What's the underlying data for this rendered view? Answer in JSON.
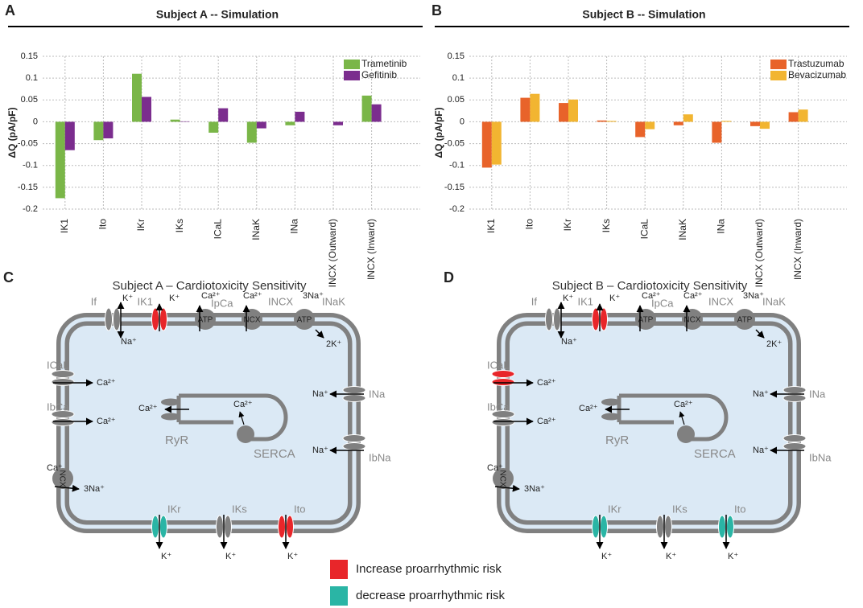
{
  "chart_data": [
    {
      "type": "bar",
      "panel": "A",
      "title": "Subject A -- Simulation",
      "y_label": "ΔQ (pA/pF)",
      "categories": [
        "IK1",
        "Ito",
        "IKr",
        "IKs",
        "ICaL",
        "INaK",
        "INa",
        "INCX (Outward)",
        "INCX (Inward)"
      ],
      "series": [
        {
          "name": "Trametinib",
          "color": "#7ab648",
          "values": [
            -0.175,
            -0.042,
            0.11,
            0.005,
            -0.025,
            -0.048,
            -0.008,
            0,
            0.06
          ]
        },
        {
          "name": "Gefitinib",
          "color": "#7b2d8e",
          "values": [
            -0.065,
            -0.038,
            0.057,
            0.001,
            0.031,
            -0.015,
            0.023,
            -0.008,
            0.04
          ]
        }
      ],
      "ylim": [
        -0.2,
        0.15
      ],
      "yticks": [
        0.15,
        0.1,
        0.05,
        0,
        -0.05,
        -0.1,
        -0.15,
        -0.2
      ],
      "grid": true,
      "legend": "top-right"
    },
    {
      "type": "bar",
      "panel": "B",
      "title": "Subject B -- Simulation",
      "y_label": "ΔQ (pA/pF)",
      "categories": [
        "IK1",
        "Ito",
        "IKr",
        "IKs",
        "ICaL",
        "INaK",
        "INa",
        "INCX (Outward)",
        "INCX (Inward)"
      ],
      "series": [
        {
          "name": "Trastuzumab",
          "color": "#e8632a",
          "values": [
            -0.105,
            0.055,
            0.043,
            0.003,
            -0.035,
            -0.008,
            -0.048,
            -0.01,
            0.022
          ]
        },
        {
          "name": "Bevacizumab",
          "color": "#f2b531",
          "values": [
            -0.098,
            0.064,
            0.051,
            0.002,
            -0.017,
            0.017,
            0.002,
            -0.016,
            0.028
          ]
        }
      ],
      "ylim": [
        -0.2,
        0.15
      ],
      "yticks": [
        0.15,
        0.1,
        0.05,
        0,
        -0.05,
        -0.1,
        -0.15,
        -0.2
      ],
      "grid": true,
      "legend": "top-right"
    }
  ],
  "diagrams": [
    {
      "panel": "C",
      "title": "Subject A – Cardiotoxicity Sensitivity",
      "channels": [
        {
          "label": "If",
          "ions": [
            "K⁺",
            "Na⁺"
          ],
          "color": "#808080"
        },
        {
          "label": "IK1",
          "ions": [
            "K⁺"
          ],
          "color": "#e8262a"
        },
        {
          "label": "IpCa",
          "pump": "ATP",
          "ions": [
            "Ca²⁺"
          ],
          "color": "#808080"
        },
        {
          "label": "INCX",
          "pump": "NCX",
          "ions": [
            "Ca²⁺"
          ],
          "color": "#808080"
        },
        {
          "label": "INaK",
          "pump": "ATP",
          "ions": [
            "3Na⁺",
            "2K⁺"
          ],
          "color": "#808080"
        },
        {
          "label": "ICaL",
          "ions": [
            "Ca²⁺"
          ],
          "color": "#808080"
        },
        {
          "label": "IbCa",
          "ions": [
            "Ca²⁺"
          ],
          "color": "#808080"
        },
        {
          "pump": "NCX",
          "ions": [
            "Ca⁺",
            "3Na⁺"
          ],
          "color": "#808080"
        },
        {
          "label": "INa",
          "ions": [
            "Na⁺"
          ],
          "color": "#808080"
        },
        {
          "label": "IbNa",
          "ions": [
            "Na⁺"
          ],
          "color": "#808080"
        },
        {
          "label": "IKr",
          "ions": [
            "K⁺"
          ],
          "color": "#2ab5a5"
        },
        {
          "label": "IKs",
          "ions": [
            "K⁺"
          ],
          "color": "#808080"
        },
        {
          "label": "Ito",
          "ions": [
            "K⁺"
          ],
          "color": "#e8262a"
        }
      ],
      "sr": {
        "ryr": "RyR",
        "serca": "SERCA",
        "ions": [
          "Ca²⁺",
          "Ca²⁺"
        ]
      }
    },
    {
      "panel": "D",
      "title": "Subject B – Cardiotoxicity Sensitivity",
      "channels": [
        {
          "label": "If",
          "ions": [
            "K⁺",
            "Na⁺"
          ],
          "color": "#808080"
        },
        {
          "label": "IK1",
          "ions": [
            "K⁺"
          ],
          "color": "#e8262a"
        },
        {
          "label": "IpCa",
          "pump": "ATP",
          "ions": [
            "Ca²⁺"
          ],
          "color": "#808080"
        },
        {
          "label": "INCX",
          "pump": "NCX",
          "ions": [
            "Ca²⁺"
          ],
          "color": "#808080"
        },
        {
          "label": "INaK",
          "pump": "ATP",
          "ions": [
            "3Na⁺",
            "2K⁺"
          ],
          "color": "#808080"
        },
        {
          "label": "ICaL",
          "ions": [
            "Ca²⁺"
          ],
          "color": "#e8262a"
        },
        {
          "label": "IbCa",
          "ions": [
            "Ca²⁺"
          ],
          "color": "#808080"
        },
        {
          "pump": "NCX",
          "ions": [
            "Ca⁺",
            "3Na⁺"
          ],
          "color": "#808080"
        },
        {
          "label": "INa",
          "ions": [
            "Na⁺"
          ],
          "color": "#808080"
        },
        {
          "label": "IbNa",
          "ions": [
            "Na⁺"
          ],
          "color": "#808080"
        },
        {
          "label": "IKr",
          "ions": [
            "K⁺"
          ],
          "color": "#2ab5a5"
        },
        {
          "label": "IKs",
          "ions": [
            "K⁺"
          ],
          "color": "#808080"
        },
        {
          "label": "Ito",
          "ions": [
            "K⁺"
          ],
          "color": "#2ab5a5"
        }
      ],
      "sr": {
        "ryr": "RyR",
        "serca": "SERCA",
        "ions": [
          "Ca²⁺",
          "Ca²⁺"
        ]
      }
    }
  ],
  "diagram_legend": [
    {
      "label": "Increase proarrhythmic risk",
      "color": "#e8262a"
    },
    {
      "label": "decrease proarrhythmic risk",
      "color": "#2ab5a5"
    }
  ]
}
